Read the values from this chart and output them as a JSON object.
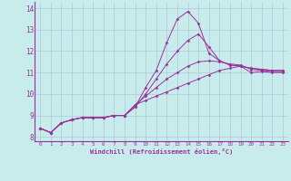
{
  "xlabel": "Windchill (Refroidissement éolien,°C)",
  "xlim": [
    -0.5,
    23.5
  ],
  "ylim": [
    7.8,
    14.3
  ],
  "yticks": [
    8,
    9,
    10,
    11,
    12,
    13,
    14
  ],
  "xticks": [
    0,
    1,
    2,
    3,
    4,
    5,
    6,
    7,
    8,
    9,
    10,
    11,
    12,
    13,
    14,
    15,
    16,
    17,
    18,
    19,
    20,
    21,
    22,
    23
  ],
  "background_color": "#c8ecec",
  "grid_color": "#b0c8d8",
  "line_color": "#993399",
  "curves": [
    [
      8.4,
      8.2,
      8.65,
      8.8,
      8.9,
      8.9,
      8.9,
      9.0,
      9.0,
      9.4,
      10.3,
      11.1,
      12.4,
      13.5,
      13.85,
      13.3,
      11.9,
      11.55,
      11.35,
      11.3,
      11.2,
      11.15,
      11.1,
      11.1
    ],
    [
      8.4,
      8.2,
      8.65,
      8.8,
      8.9,
      8.9,
      8.9,
      9.0,
      9.0,
      9.4,
      10.0,
      10.7,
      11.4,
      12.0,
      12.5,
      12.8,
      12.2,
      11.55,
      11.35,
      11.3,
      11.2,
      11.15,
      11.1,
      11.1
    ],
    [
      8.4,
      8.2,
      8.65,
      8.8,
      8.9,
      8.9,
      8.9,
      9.0,
      9.0,
      9.5,
      9.9,
      10.3,
      10.7,
      11.0,
      11.3,
      11.5,
      11.55,
      11.5,
      11.4,
      11.35,
      11.15,
      11.1,
      11.05,
      11.05
    ],
    [
      8.4,
      8.2,
      8.65,
      8.8,
      8.9,
      8.9,
      8.9,
      9.0,
      9.0,
      9.5,
      9.7,
      9.9,
      10.1,
      10.3,
      10.5,
      10.7,
      10.9,
      11.1,
      11.2,
      11.3,
      11.0,
      11.05,
      11.0,
      11.0
    ]
  ]
}
